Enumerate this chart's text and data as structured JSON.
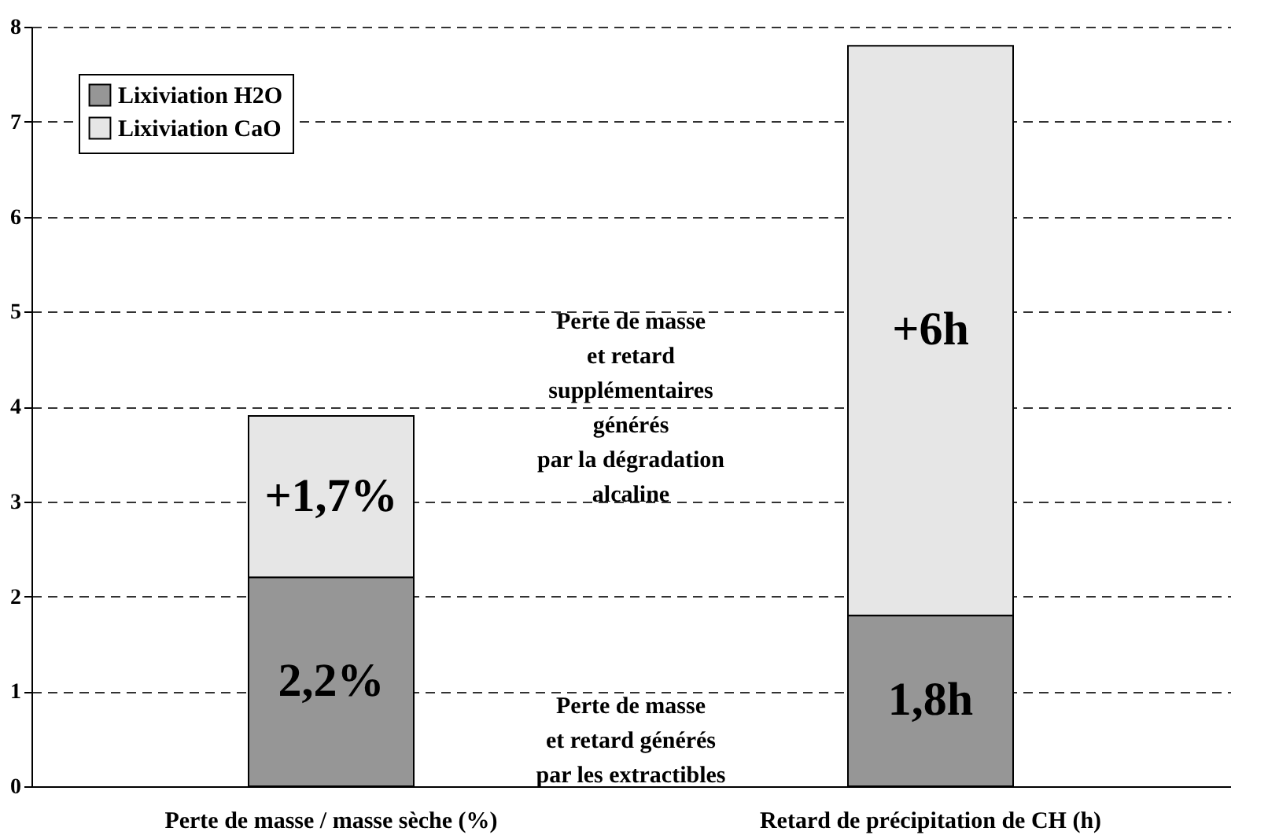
{
  "chart_data": {
    "type": "bar",
    "stacked": true,
    "categories": [
      "Perte de masse / masse sèche (%)",
      "Retard de précipitation de CH (h)"
    ],
    "series": [
      {
        "name": "Lixiviation H2O",
        "color": "#969696",
        "values": [
          2.2,
          1.8
        ],
        "value_labels": [
          "2,2%",
          "1,8h"
        ]
      },
      {
        "name": "Lixiviation CaO",
        "color": "#e6e6e6",
        "values": [
          1.7,
          6
        ],
        "value_labels": [
          "+1,7%",
          "+6h"
        ]
      }
    ],
    "ylim": [
      0,
      8
    ],
    "yticks": [
      0,
      1,
      2,
      3,
      4,
      5,
      6,
      7,
      8
    ],
    "grid": "y",
    "legend": "top left",
    "annotations": [
      "Perte de masse\net retard\nsupplémentaires\ngénérés\npar la dégradation\nalcaline",
      "Perte de masse\net retard générés\npar les extractibles"
    ]
  }
}
